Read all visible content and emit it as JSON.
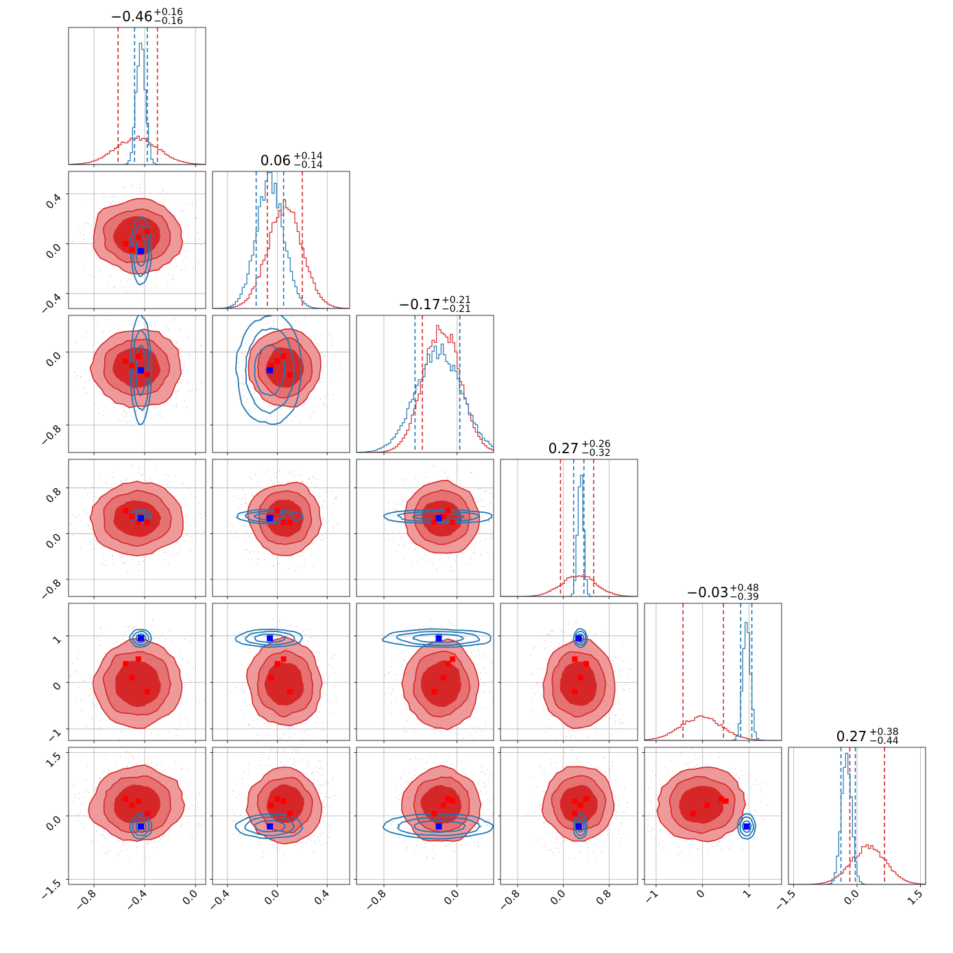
{
  "chart_data": {
    "type": "corner",
    "n_params": 6,
    "grid": true,
    "colors": {
      "red": "#d62728",
      "red_light": "#ef9a9a",
      "red_mid": "#e57373",
      "blue": "#1f77b4",
      "truth_blue": "#0000ff",
      "truth_red": "#ff0000"
    },
    "params": [
      {
        "title_main": "−0.46",
        "title_plus": "+0.16",
        "title_minus": "−0.16",
        "range": [
          -1.0,
          0.08
        ],
        "ticks": [
          -0.8,
          -0.4,
          0.0
        ],
        "tick_labels": [
          "−0.8",
          "−0.4",
          "0.0"
        ],
        "red": {
          "center": -0.46,
          "sigma": 0.17,
          "q": [
            -0.61,
            -0.3
          ]
        },
        "blue": {
          "center": -0.43,
          "sigma": 0.035,
          "q": [
            -0.48,
            -0.38
          ]
        }
      },
      {
        "title_main": "0.06",
        "title_plus": "+0.14",
        "title_minus": "−0.14",
        "range": [
          -0.52,
          0.58
        ],
        "ticks": [
          -0.4,
          0.0,
          0.4
        ],
        "tick_labels": [
          "−0.4",
          "0.0",
          "0.4"
        ],
        "red": {
          "center": 0.06,
          "sigma": 0.14,
          "q": [
            -0.08,
            0.2
          ]
        },
        "blue": {
          "center": -0.06,
          "sigma": 0.11,
          "q": [
            -0.17,
            0.05
          ]
        }
      },
      {
        "title_main": "−0.17",
        "title_plus": "+0.21",
        "title_minus": "−0.21",
        "range": [
          -1.1,
          0.4
        ],
        "ticks": [
          -0.8,
          0.0
        ],
        "tick_labels": [
          "−0.8",
          "0.0"
        ],
        "red": {
          "center": -0.17,
          "sigma": 0.2,
          "q": [
            -0.38,
            0.03
          ]
        },
        "blue": {
          "center": -0.2,
          "sigma": 0.25,
          "q": [
            -0.46,
            0.03
          ]
        }
      },
      {
        "title_main": "0.27",
        "title_plus": "+0.26",
        "title_minus": "−0.32",
        "range": [
          -1.1,
          1.3
        ],
        "ticks": [
          -0.8,
          0.0,
          0.8
        ],
        "tick_labels": [
          "−0.8",
          "0.0",
          "0.8"
        ],
        "red": {
          "center": 0.27,
          "sigma": 0.3,
          "q": [
            -0.05,
            0.53
          ]
        },
        "blue": {
          "center": 0.3,
          "sigma": 0.05,
          "q": [
            0.18,
            0.36
          ]
        }
      },
      {
        "title_main": "−0.03",
        "title_plus": "+0.48",
        "title_minus": "−0.39",
        "range": [
          -1.25,
          1.7
        ],
        "ticks": [
          -1,
          0,
          1
        ],
        "tick_labels": [
          "−1",
          "0",
          "1"
        ],
        "red": {
          "center": -0.03,
          "sigma": 0.45,
          "q": [
            -0.42,
            0.45
          ]
        },
        "blue": {
          "center": 0.95,
          "sigma": 0.08,
          "q": [
            0.82,
            1.06
          ]
        }
      },
      {
        "title_main": "0.27",
        "title_plus": "+0.38",
        "title_minus": "−0.44",
        "range": [
          -1.62,
          1.62
        ],
        "ticks": [
          -1.5,
          0.0,
          1.5
        ],
        "tick_labels": [
          "−1.5",
          "0.0",
          "1.5"
        ],
        "red": {
          "center": 0.27,
          "sigma": 0.42,
          "q": [
            -0.17,
            0.65
          ]
        },
        "blue": {
          "center": -0.25,
          "sigma": 0.12,
          "q": [
            -0.38,
            -0.04
          ]
        }
      }
    ],
    "truth_blue": [
      -0.43,
      -0.06,
      -0.2,
      0.27,
      0.95,
      -0.25
    ],
    "red_markers": [
      [
        -0.45,
        0.05,
        -0.05,
        0.2,
        0.5,
        0.35
      ],
      [
        -0.5,
        -0.05,
        -0.15,
        0.3,
        0.1,
        0.25
      ],
      [
        -0.38,
        0.1,
        -0.25,
        0.2,
        -0.2,
        0.05
      ],
      [
        -0.55,
        0.0,
        -0.1,
        0.4,
        0.4,
        0.4
      ]
    ]
  }
}
